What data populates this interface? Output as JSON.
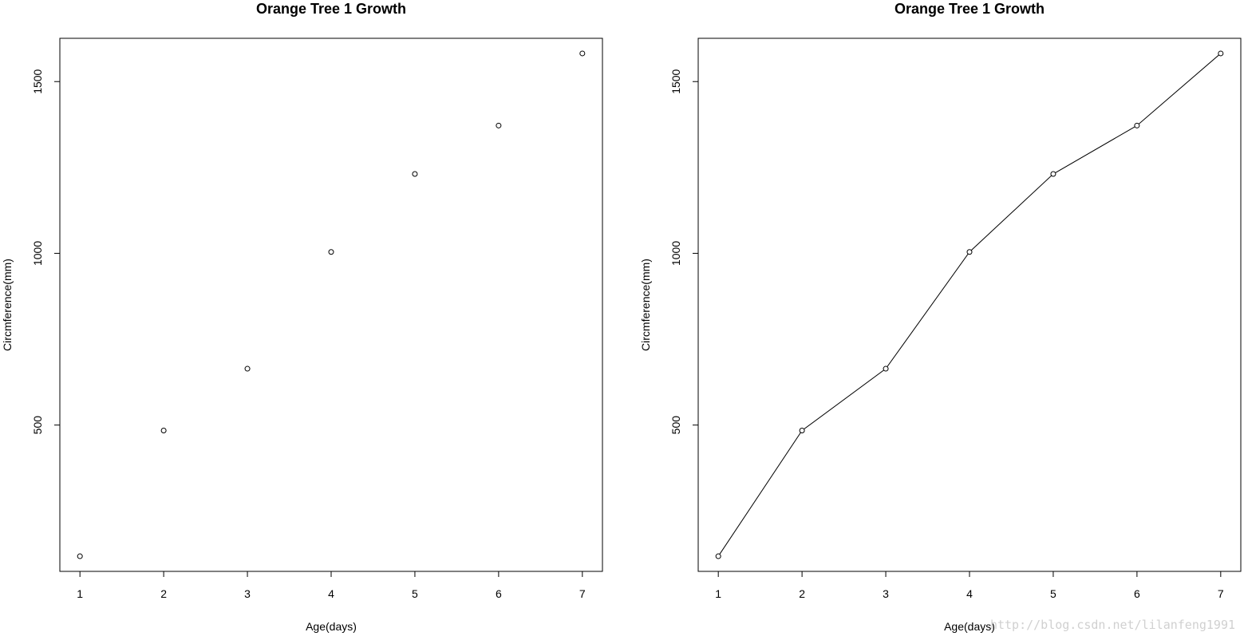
{
  "chart_data": [
    {
      "type": "scatter",
      "title": "Orange Tree 1 Growth",
      "xlabel": "Age(days)",
      "ylabel": "Circmference(mm)",
      "x": [
        1,
        2,
        3,
        4,
        5,
        6,
        7
      ],
      "y": [
        118,
        484,
        664,
        1004,
        1231,
        1372,
        1582
      ],
      "xlim": [
        0.76,
        7.24
      ],
      "ylim": [
        74,
        1626
      ],
      "xticks": [
        1,
        2,
        3,
        4,
        5,
        6,
        7
      ],
      "yticks": [
        500,
        1000,
        1500
      ],
      "grid": false,
      "legend": null
    },
    {
      "type": "line",
      "title": "Orange Tree 1 Growth",
      "xlabel": "Age(days)",
      "ylabel": "Circmference(mm)",
      "x": [
        1,
        2,
        3,
        4,
        5,
        6,
        7
      ],
      "y": [
        118,
        484,
        664,
        1004,
        1231,
        1372,
        1582
      ],
      "xlim": [
        0.76,
        7.24
      ],
      "ylim": [
        74,
        1626
      ],
      "xticks": [
        1,
        2,
        3,
        4,
        5,
        6,
        7
      ],
      "yticks": [
        500,
        1000,
        1500
      ],
      "grid": false,
      "legend": null,
      "markers": true
    }
  ],
  "watermark": "http://blog.csdn.net/lilanfeng1991"
}
